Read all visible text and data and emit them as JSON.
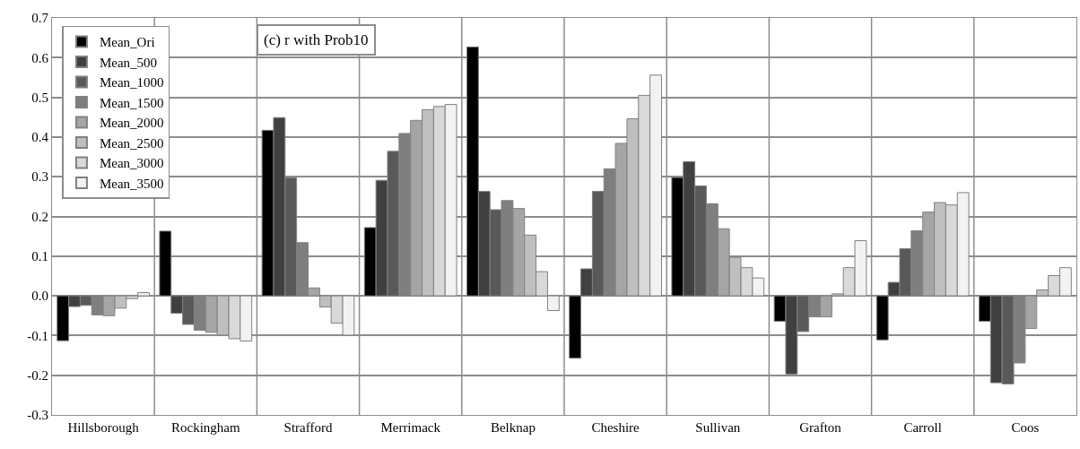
{
  "chart_data": {
    "type": "bar",
    "title": "(c) r with Prob10",
    "categories": [
      "Hillsborough",
      "Rockingham",
      "Strafford",
      "Merrimack",
      "Belknap",
      "Cheshire",
      "Sullivan",
      "Grafton",
      "Carroll",
      "Coos"
    ],
    "series": [
      {
        "name": "Mean_Ori",
        "color": "#000000",
        "values": [
          -0.113,
          0.163,
          0.417,
          0.172,
          0.627,
          -0.157,
          0.298,
          -0.064,
          -0.111,
          -0.064
        ]
      },
      {
        "name": "Mean_500",
        "color": "#404040",
        "values": [
          -0.027,
          -0.044,
          0.449,
          0.291,
          0.263,
          0.068,
          0.338,
          -0.197,
          0.034,
          -0.219
        ]
      },
      {
        "name": "Mean_1000",
        "color": "#595959",
        "values": [
          -0.024,
          -0.072,
          0.297,
          0.364,
          0.217,
          0.263,
          0.277,
          -0.09,
          0.119,
          -0.222
        ]
      },
      {
        "name": "Mean_1500",
        "color": "#7f7f7f",
        "values": [
          -0.048,
          -0.087,
          0.134,
          0.409,
          0.24,
          0.32,
          0.232,
          -0.053,
          0.164,
          -0.169
        ]
      },
      {
        "name": "Mean_2000",
        "color": "#a5a5a5",
        "values": [
          -0.05,
          -0.092,
          0.02,
          0.442,
          0.22,
          0.384,
          0.169,
          -0.053,
          0.211,
          -0.082
        ]
      },
      {
        "name": "Mean_2500",
        "color": "#bfbfbf",
        "values": [
          -0.031,
          -0.099,
          -0.028,
          0.469,
          0.153,
          0.446,
          0.097,
          0.005,
          0.235,
          0.015
        ]
      },
      {
        "name": "Mean_3000",
        "color": "#d9d9d9",
        "values": [
          -0.007,
          -0.108,
          -0.069,
          0.477,
          0.061,
          0.505,
          0.071,
          0.071,
          0.229,
          0.051
        ]
      },
      {
        "name": "Mean_3500",
        "color": "#f2f2f2",
        "values": [
          0.008,
          -0.114,
          -0.099,
          0.482,
          -0.037,
          0.556,
          0.045,
          0.139,
          0.26,
          0.071
        ]
      }
    ],
    "ylim": [
      -0.3,
      0.7
    ],
    "yticks": [
      -0.3,
      -0.2,
      -0.1,
      {
        "value": 0,
        "label": "0.0"
      },
      0.1,
      0.2,
      0.3,
      0.4,
      0.5,
      0.6,
      0.7
    ],
    "grid": true,
    "legend": "top left"
  }
}
